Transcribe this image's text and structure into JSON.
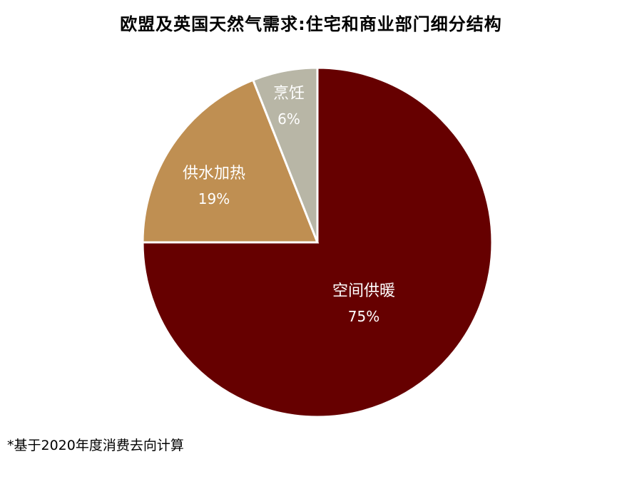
{
  "chart_data": {
    "type": "pie",
    "title": "欧盟及英国天然气需求:住宅和商业部门细分结构",
    "slices": [
      {
        "label": "空间供暖",
        "value": 75,
        "display": "75%",
        "color": "#660000",
        "label_color": "#ffffff"
      },
      {
        "label": "供水加热",
        "value": 19,
        "display": "19%",
        "color": "#bf8f52",
        "label_color": "#ffffff"
      },
      {
        "label": "烹饪",
        "value": 6,
        "display": "6%",
        "color": "#b8b6a6",
        "label_color": "#ffffff"
      }
    ],
    "start": "12 o'clock",
    "direction": "clockwise"
  },
  "footnote": "*基于2020年度消费去向计算"
}
